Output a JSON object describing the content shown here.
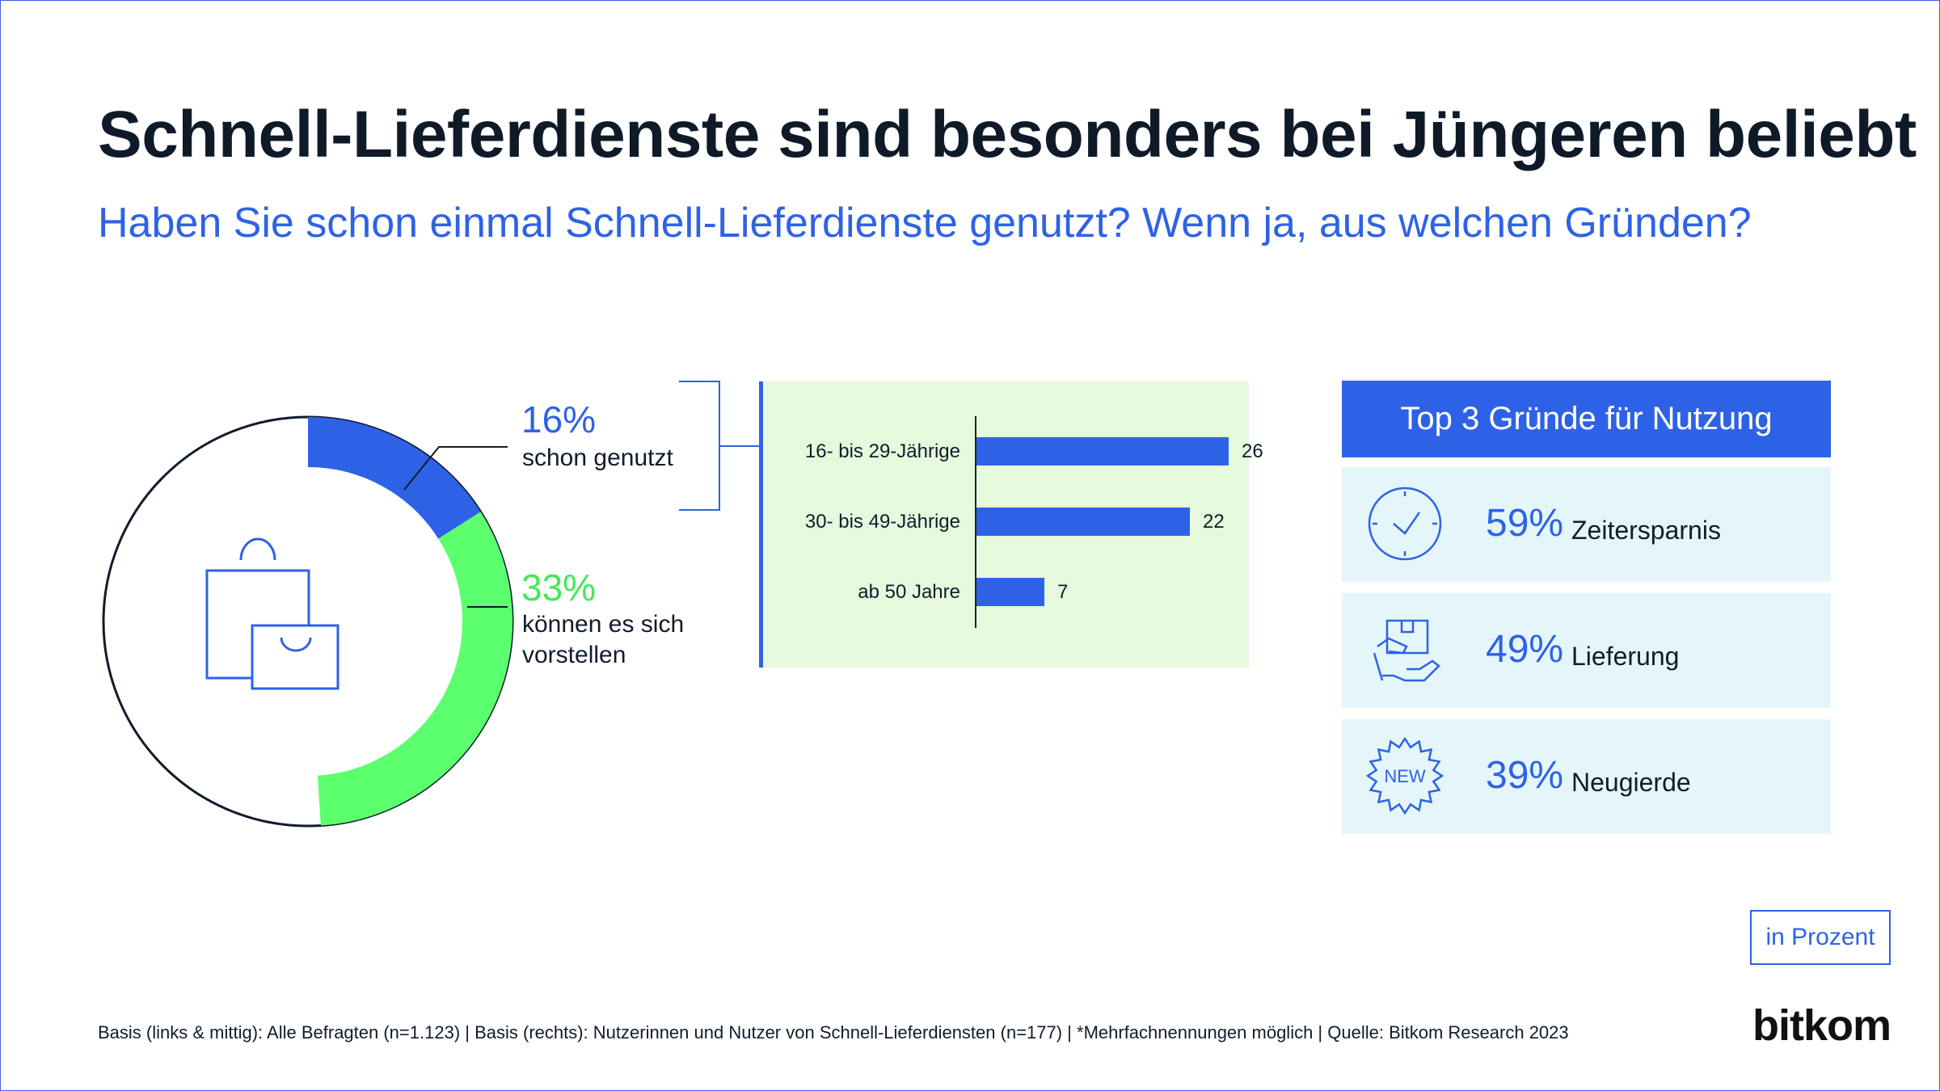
{
  "title": "Schnell-Lieferdienste sind besonders bei Jüngeren beliebt",
  "subtitle": "Haben Sie schon einmal Schnell-Lieferdienste genutzt? Wenn ja, aus welchen Gründen?",
  "colors": {
    "blue": "#2e62e6",
    "green": "#5cff6e",
    "panel": "#e6f9dc",
    "reason_bg": "#e5f6fb"
  },
  "donut": {
    "used": {
      "value": "16%",
      "label": "schon genutzt"
    },
    "imaginable": {
      "value": "33%",
      "label_line1": "können es sich",
      "label_line2": "vorstellen"
    },
    "icon": "shopping-bags-icon"
  },
  "chart_data": [
    {
      "type": "pie",
      "variant": "donut",
      "categories": [
        "schon genutzt",
        "können es sich vorstellen"
      ],
      "values": [
        16,
        33
      ]
    },
    {
      "type": "bar",
      "orientation": "horizontal",
      "categories": [
        "16- bis 29-Jährige",
        "30- bis 49-Jährige",
        "ab 50 Jahre"
      ],
      "values": [
        26,
        22,
        7
      ],
      "xlim": [
        0,
        30
      ]
    }
  ],
  "top3": {
    "heading": "Top 3 Gründe für Nutzung",
    "items": [
      {
        "value": "59%",
        "label": "Zeitersparnis",
        "icon": "clock-icon"
      },
      {
        "value": "49%",
        "label": "Lieferung",
        "icon": "delivery-hand-icon"
      },
      {
        "value": "39%",
        "label": "Neugierde",
        "icon": "new-badge-icon",
        "badge_text": "NEW"
      }
    ]
  },
  "unit_note": "in Prozent",
  "footnote": "Basis (links & mittig): Alle Befragten (n=1.123) | Basis (rechts): Nutzerinnen und Nutzer von Schnell-Lieferdiensten (n=177) | *Mehrfachnennungen möglich | Quelle: Bitkom Research 2023",
  "logo": "bitkom"
}
